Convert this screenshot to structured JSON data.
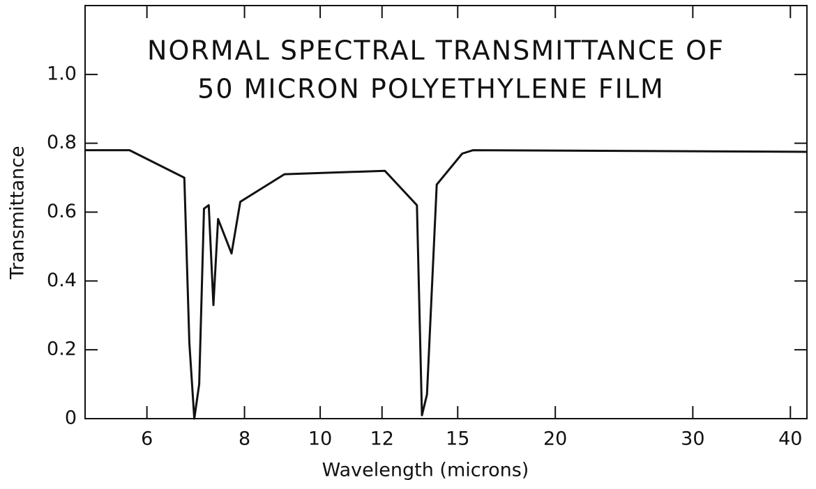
{
  "chart_data": {
    "type": "line",
    "title": [
      "NORMAL SPECTRAL TRANSMITTANCE OF",
      "50 MICRON POLYETHYLENE FILM"
    ],
    "xlabel": "Wavelength (microns)",
    "ylabel": "Transmittance",
    "xscale": "log",
    "xlim": [
      5,
      42
    ],
    "xticks": [
      6,
      8,
      10,
      12,
      15,
      20,
      30,
      40
    ],
    "ylim": [
      0,
      1.2
    ],
    "yticks": [
      0,
      0.2,
      0.4,
      0.6,
      0.8,
      {
        "value": 1,
        "label": "1.0"
      }
    ],
    "grid": false,
    "color": "#111111",
    "x": [
      5,
      5.7,
      6.7,
      6.8,
      6.9,
      7.0,
      7.1,
      7.2,
      7.3,
      7.4,
      7.7,
      7.9,
      9.0,
      12.1,
      13.3,
      13.5,
      13.7,
      14.1,
      15.2,
      15.7,
      42
    ],
    "values": [
      0.78,
      0.78,
      0.7,
      0.22,
      0.0,
      0.1,
      0.61,
      0.62,
      0.33,
      0.58,
      0.48,
      0.63,
      0.71,
      0.72,
      0.62,
      0.01,
      0.07,
      0.68,
      0.77,
      0.78,
      0.775
    ]
  }
}
